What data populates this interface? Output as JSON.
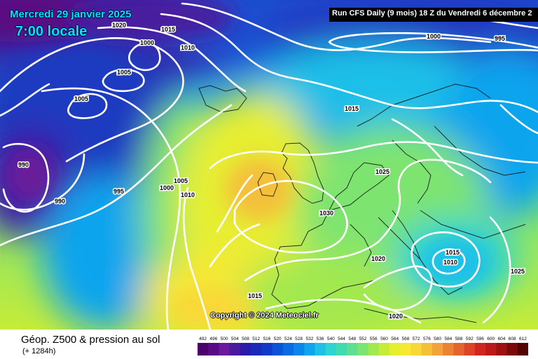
{
  "header": {
    "date": "Mercredi 29 janvier 2025",
    "time": "7:00 locale",
    "run": "Run CFS Daily (9 mois) 18 Z du Vendredi 6 décembre 2"
  },
  "copyright": "Copyright © 2024 Meteociel.fr",
  "footer": {
    "title": "Géop. Z500 & pression au sol",
    "subtitle": "(+ 1284h)"
  },
  "legend": {
    "values": [
      "492",
      "496",
      "500",
      "504",
      "508",
      "512",
      "516",
      "520",
      "524",
      "528",
      "532",
      "536",
      "540",
      "544",
      "548",
      "552",
      "556",
      "560",
      "564",
      "568",
      "572",
      "576",
      "580",
      "584",
      "588",
      "592",
      "596",
      "600",
      "604",
      "608",
      "612"
    ],
    "colors": [
      "#4b006b",
      "#5a0a82",
      "#6a1a9a",
      "#4a1a9e",
      "#2a1aaa",
      "#1a2ab8",
      "#103ac8",
      "#0a52d6",
      "#0a6ae0",
      "#0a86ea",
      "#10a4ee",
      "#1ec0e8",
      "#2ed4d0",
      "#40dcb0",
      "#5ee090",
      "#7ee470",
      "#a2e850",
      "#c6ec38",
      "#e6ee30",
      "#f6e834",
      "#f8d838",
      "#f4c03a",
      "#f0a43a",
      "#ea8434",
      "#e4642e",
      "#dc4428",
      "#d02622",
      "#bc1a1a",
      "#9c1212",
      "#7a0a0a",
      "#520404"
    ]
  },
  "isobars": [
    "1020",
    "1015",
    "1000",
    "1010",
    "1005",
    "1005",
    "990",
    "990",
    "995",
    "1000",
    "1005",
    "1010",
    "1015",
    "1000",
    "995",
    "1025",
    "1030",
    "1020",
    "1015",
    "1010",
    "1025",
    "1015",
    "1020"
  ]
}
